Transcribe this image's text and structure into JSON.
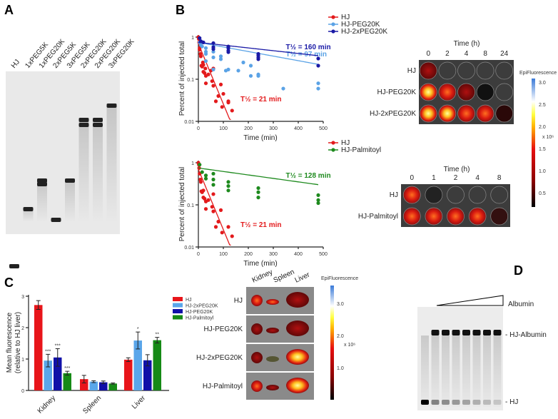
{
  "panels": {
    "a": "A",
    "b": "B",
    "c": "C",
    "d": "D"
  },
  "gel_a": {
    "lanes": [
      "HJ",
      "1xPEG5K",
      "1xPEG20K",
      "2xPEG5K",
      "3xPEG5K",
      "2xPEG20K",
      "2xPEG20K",
      "3xPEG20K"
    ]
  },
  "imaging_top": {
    "title": "Time (h)",
    "times": [
      "0",
      "2",
      "4",
      "8",
      "24"
    ],
    "rows": [
      "HJ",
      "HJ-PEG20K",
      "HJ-2xPEG20K"
    ]
  },
  "imaging_bottom": {
    "title": "Time (h)",
    "times": [
      "0",
      "1",
      "2",
      "4",
      "8"
    ],
    "rows": [
      "HJ",
      "HJ-Palmitoyl"
    ]
  },
  "colorbar_b": {
    "title": "EpiFluorescence",
    "ticks": [
      "3.0",
      "2.5",
      "2.0",
      "1.5",
      "1.0",
      "0.5"
    ],
    "unit": "x 10⁶"
  },
  "organs": {
    "columns": [
      "Kidney",
      "Spleen",
      "Liver"
    ],
    "rows": [
      "HJ",
      "HJ-PEG20K",
      "HJ-2xPEG20K",
      "HJ-Palmitoyl"
    ]
  },
  "colorbar_c": {
    "title": "EpiFluorescence",
    "ticks": [
      "3.0",
      "2.0",
      "1.0"
    ],
    "unit": "x 10⁶"
  },
  "gel_d": {
    "gradient_label": "Albumin",
    "bands": [
      "- HJ-Albumin",
      "- HJ"
    ]
  },
  "chart_data": [
    {
      "type": "scatter",
      "panel": "B-top",
      "xlabel": "Time (min)",
      "ylabel": "Percent of injected total",
      "xlim": [
        0,
        500
      ],
      "ylim": [
        0.01,
        1
      ],
      "yscale": "log",
      "xticks": [
        "0",
        "100",
        "200",
        "300",
        "400",
        "500"
      ],
      "yticks": [
        "1",
        "0.1",
        "0.01"
      ],
      "legend": "top-right",
      "series": [
        {
          "name": "HJ",
          "color": "#e31a1c",
          "annotation": "T½ = 21 min",
          "fit_end": 130,
          "half_life": 21,
          "points": [
            [
              0,
              1
            ],
            [
              2,
              0.9
            ],
            [
              3,
              0.75
            ],
            [
              5,
              0.55
            ],
            [
              5,
              0.5
            ],
            [
              8,
              0.4
            ],
            [
              10,
              0.35
            ],
            [
              12,
              0.21
            ],
            [
              15,
              0.2
            ],
            [
              18,
              0.25
            ],
            [
              20,
              0.22
            ],
            [
              20,
              0.15
            ],
            [
              25,
              0.14
            ],
            [
              28,
              0.18
            ],
            [
              30,
              0.12
            ],
            [
              30,
              0.08
            ],
            [
              40,
              0.13
            ],
            [
              50,
              0.16
            ],
            [
              55,
              0.09
            ],
            [
              60,
              0.18
            ],
            [
              60,
              0.07
            ],
            [
              70,
              0.03
            ],
            [
              80,
              0.04
            ],
            [
              90,
              0.075
            ],
            [
              95,
              0.022
            ],
            [
              100,
              0.045
            ],
            [
              120,
              0.03
            ],
            [
              120,
              0.028
            ],
            [
              135,
              0.018
            ]
          ]
        },
        {
          "name": "HJ-PEG20K",
          "color": "#5ba3e6",
          "annotation": "T½ = 97 min",
          "fit_end": 480,
          "half_life": 97,
          "points": [
            [
              5,
              0.75
            ],
            [
              10,
              0.65
            ],
            [
              15,
              0.6
            ],
            [
              30,
              0.55
            ],
            [
              30,
              0.45
            ],
            [
              30,
              0.4
            ],
            [
              30,
              0.27
            ],
            [
              60,
              0.45
            ],
            [
              60,
              0.33
            ],
            [
              60,
              0.17
            ],
            [
              90,
              0.35
            ],
            [
              90,
              0.3
            ],
            [
              110,
              0.16
            ],
            [
              120,
              0.17
            ],
            [
              160,
              0.16
            ],
            [
              180,
              0.25
            ],
            [
              210,
              0.21
            ],
            [
              210,
              0.12
            ],
            [
              240,
              0.13
            ],
            [
              240,
              0.12
            ],
            [
              340,
              0.06
            ],
            [
              480,
              0.08
            ],
            [
              480,
              0.06
            ]
          ]
        },
        {
          "name": "HJ-2xPEG20K",
          "color": "#1a1aa6",
          "annotation": "T½ = 160 min",
          "fit_end": 480,
          "half_life": 160,
          "points": [
            [
              5,
              0.95
            ],
            [
              10,
              0.8
            ],
            [
              20,
              0.75
            ],
            [
              60,
              0.72
            ],
            [
              60,
              0.58
            ],
            [
              60,
              0.52
            ],
            [
              120,
              0.6
            ],
            [
              120,
              0.55
            ],
            [
              120,
              0.48
            ],
            [
              120,
              0.44
            ],
            [
              240,
              0.4
            ],
            [
              240,
              0.37
            ],
            [
              240,
              0.33
            ],
            [
              240,
              0.3
            ],
            [
              480,
              0.31
            ],
            [
              480,
              0.21
            ]
          ]
        }
      ]
    },
    {
      "type": "scatter",
      "panel": "B-bottom",
      "xlabel": "Time (min)",
      "ylabel": "Percent of injected total",
      "xlim": [
        0,
        500
      ],
      "ylim": [
        0.01,
        1
      ],
      "yscale": "log",
      "xticks": [
        "0",
        "100",
        "200",
        "300",
        "400",
        "500"
      ],
      "yticks": [
        "1",
        "0.1",
        "0.01"
      ],
      "legend": "top-right",
      "series": [
        {
          "name": "HJ",
          "color": "#e31a1c",
          "annotation": "T½ = 21 min",
          "fit_end": 130,
          "half_life": 21,
          "points": [
            [
              0,
              1
            ],
            [
              2,
              0.9
            ],
            [
              3,
              0.75
            ],
            [
              5,
              0.55
            ],
            [
              8,
              0.4
            ],
            [
              10,
              0.35
            ],
            [
              12,
              0.21
            ],
            [
              15,
              0.2
            ],
            [
              20,
              0.22
            ],
            [
              20,
              0.15
            ],
            [
              25,
              0.14
            ],
            [
              30,
              0.12
            ],
            [
              30,
              0.08
            ],
            [
              40,
              0.13
            ],
            [
              55,
              0.09
            ],
            [
              60,
              0.18
            ],
            [
              60,
              0.07
            ],
            [
              70,
              0.03
            ],
            [
              80,
              0.04
            ],
            [
              90,
              0.075
            ],
            [
              95,
              0.022
            ],
            [
              120,
              0.03
            ],
            [
              135,
              0.018
            ]
          ]
        },
        {
          "name": "HJ-Palmitoyl",
          "color": "#1e8a1e",
          "annotation": "T½ = 128 min",
          "fit_end": 480,
          "half_life": 128,
          "points": [
            [
              5,
              0.9
            ],
            [
              15,
              0.6
            ],
            [
              30,
              0.5
            ],
            [
              30,
              0.42
            ],
            [
              60,
              0.55
            ],
            [
              60,
              0.4
            ],
            [
              60,
              0.3
            ],
            [
              120,
              0.35
            ],
            [
              120,
              0.28
            ],
            [
              120,
              0.22
            ],
            [
              240,
              0.25
            ],
            [
              240,
              0.2
            ],
            [
              240,
              0.15
            ],
            [
              480,
              0.17
            ],
            [
              480,
              0.13
            ],
            [
              480,
              0.11
            ]
          ]
        }
      ]
    },
    {
      "type": "bar",
      "panel": "C",
      "ylabel": "Mean fluorescence (relative to HJ liver)",
      "ylim": [
        0,
        3
      ],
      "yticks": [
        "0",
        "1",
        "2",
        "3"
      ],
      "categories": [
        "Kidney",
        "Spleen",
        "Liver"
      ],
      "legend": "top-right",
      "series": [
        {
          "name": "HJ",
          "color": "#e8151a",
          "values": [
            2.72,
            0.36,
            0.98
          ],
          "errors": [
            0.14,
            0.12,
            0.06
          ],
          "sig": [
            "",
            "",
            ""
          ]
        },
        {
          "name": "HJ-2xPEG20K",
          "color": "#5aa6ea",
          "values": [
            0.95,
            0.28,
            1.59
          ],
          "errors": [
            0.2,
            0.03,
            0.27
          ],
          "sig": [
            "***",
            "",
            "*"
          ]
        },
        {
          "name": "HJ-PEG20K",
          "color": "#1010a8",
          "values": [
            1.05,
            0.26,
            0.96
          ],
          "errors": [
            0.28,
            0.04,
            0.18
          ],
          "sig": [
            "***",
            "",
            ""
          ]
        },
        {
          "name": "HJ-Palmitoyl",
          "color": "#168a16",
          "values": [
            0.55,
            0.22,
            1.6
          ],
          "errors": [
            0.06,
            0.02,
            0.09
          ],
          "sig": [
            "***",
            "",
            "**"
          ]
        }
      ]
    }
  ]
}
